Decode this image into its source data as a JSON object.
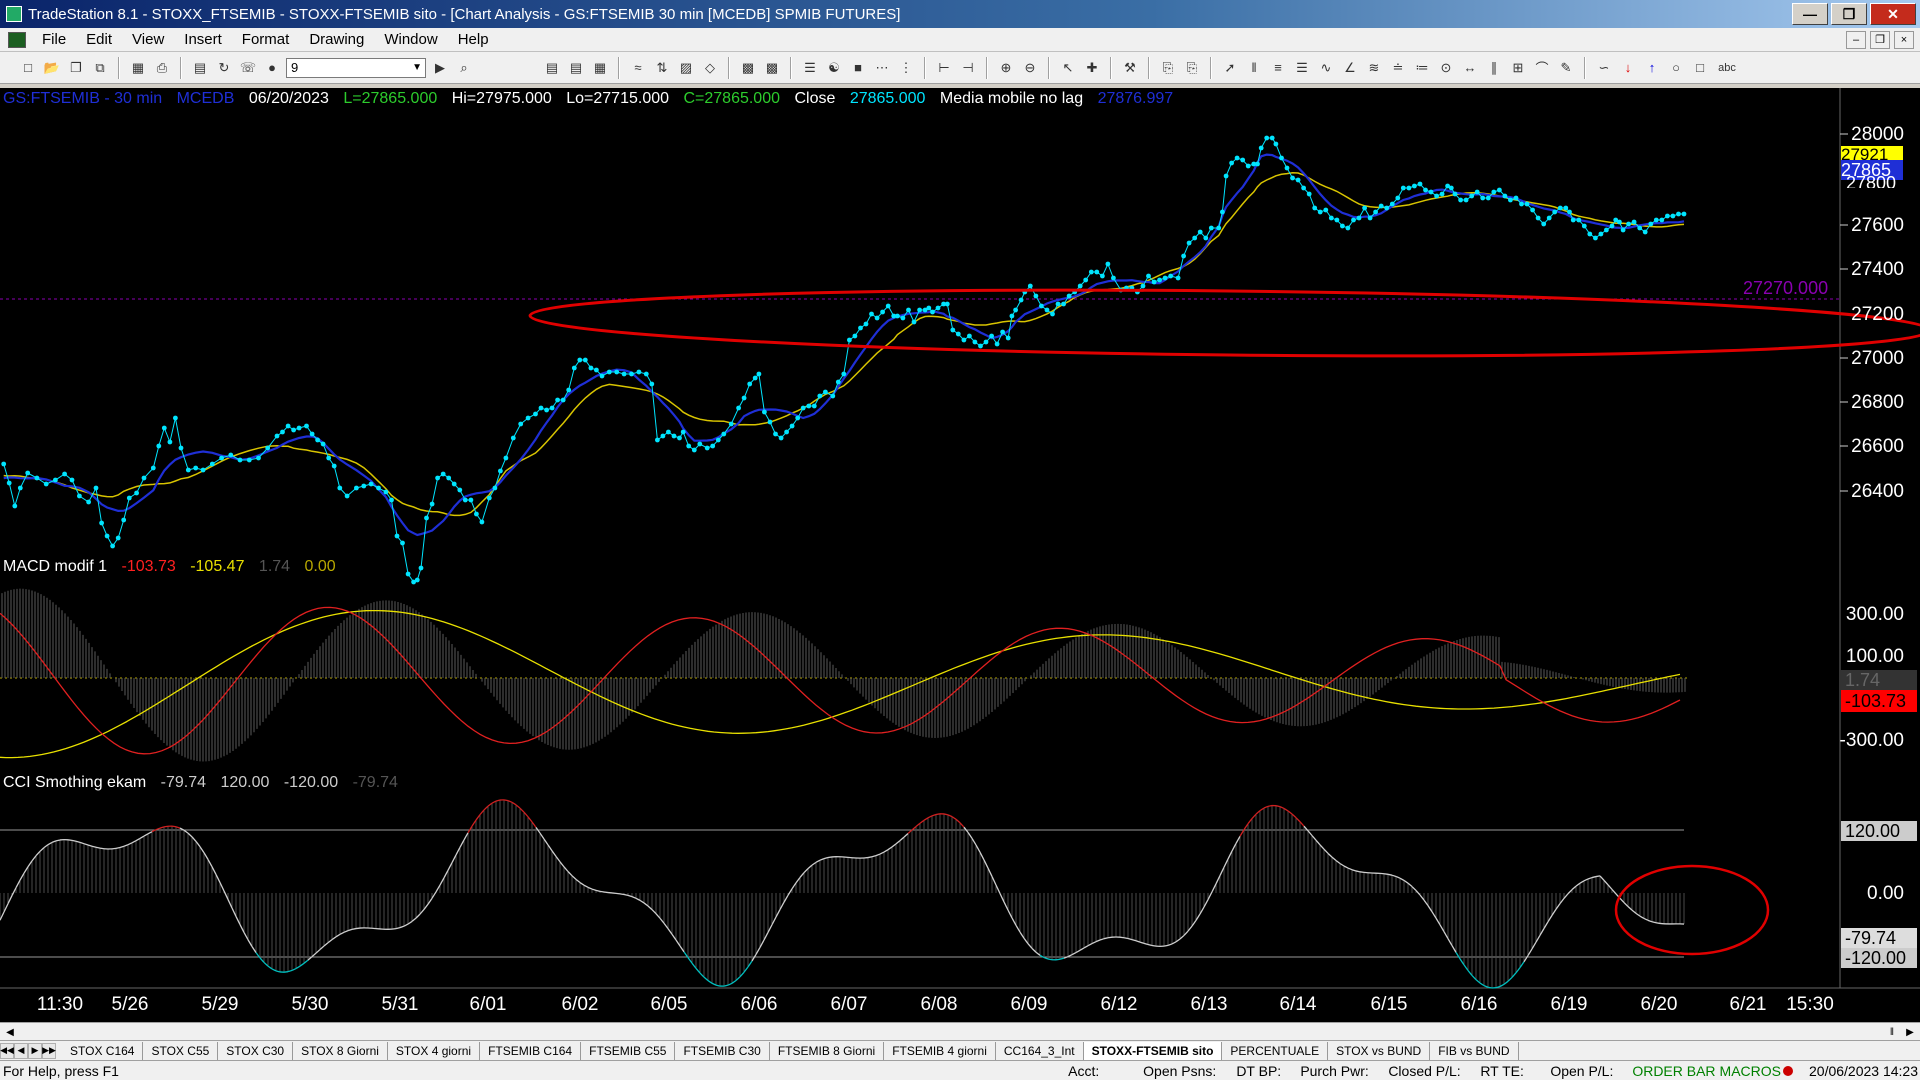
{
  "window": {
    "title": "TradeStation 8.1 - STOXX_FTSEMIB - STOXX-FTSEMIB sito - [Chart Analysis - GS:FTSEMIB  30 min  [MCEDB] SPMIB FUTURES]",
    "minimize": "—",
    "restore": "❐",
    "close": "✕"
  },
  "menu": {
    "items": [
      "File",
      "Edit",
      "View",
      "Insert",
      "Format",
      "Drawing",
      "Window",
      "Help"
    ],
    "mdi_min": "–",
    "mdi_restore": "❐",
    "mdi_close": "×"
  },
  "toolbar": {
    "interval_value": "9",
    "text_tool": "abc"
  },
  "price_pane": {
    "symbol": "GS:FTSEMIB - 30 min",
    "feed": "MCEDB",
    "date": "06/20/2023",
    "last": "L=27865.000",
    "high": "Hi=27975.000",
    "low": "Lo=27715.000",
    "close_eq": "C=27865.000",
    "close_label": "Close",
    "close_value": "27865.000",
    "ma_label": "Media mobile no lag",
    "ma_value": "27876.997",
    "hline_label": "27270.000",
    "axis": [
      "28000",
      "27600",
      "27400",
      "27200",
      "27000",
      "26800",
      "26600",
      "26400"
    ],
    "tag_yellow": "27921",
    "tag_blue": "27865",
    "tag_partial": "27800",
    "colors": {
      "price": "#00e5ff",
      "ma_blue": "#1f2fd6",
      "ma_yellow": "#d8c400",
      "hline": "#8a00b0",
      "annotation": "#e00000"
    }
  },
  "macd_pane": {
    "name": "MACD modif 1",
    "v1": "-103.73",
    "v2": "-105.47",
    "v3": "1.74",
    "v4": "0.00",
    "axis": [
      "300.00",
      "100.00",
      "-300.00"
    ],
    "tag_gray": "1.74",
    "tag_red": "-103.73"
  },
  "cci_pane": {
    "name": "CCI Smothing ekam",
    "v1": "-79.74",
    "v2": "120.00",
    "v3": "-120.00",
    "v4": "-79.74",
    "axis_mid": "0.00",
    "tag_upper": "120.00",
    "tag_value": "-79.74",
    "tag_lower": "-120.00"
  },
  "dates": [
    "11:30",
    "5/26",
    "5/29",
    "5/30",
    "5/31",
    "6/01",
    "6/02",
    "6/05",
    "6/06",
    "6/07",
    "6/08",
    "6/09",
    "6/12",
    "6/13",
    "6/14",
    "6/15",
    "6/16",
    "6/19",
    "6/20",
    "6/21",
    "15:30"
  ],
  "tabs": [
    "STOX C164",
    "STOX C55",
    "STOX  C30",
    "STOX  8 Giorni",
    "STOX 4 giorni",
    "FTSEMIB C164",
    "FTSEMIB C55",
    "FTSEMIB C30",
    "FTSEMIB  8 Giorni",
    "FTSEMIB  4 giorni",
    "CC164_3_Int",
    "STOXX-FTSEMIB sito",
    "PERCENTUALE",
    "STOX vs BUND",
    "FIB vs BUND"
  ],
  "active_tab": "STOXX-FTSEMIB sito",
  "status": {
    "help": "For Help, press F1",
    "acct": "Acct:",
    "open_psns": "Open Psns:",
    "dt_bp": "DT BP:",
    "purch_pwr": "Purch Pwr:",
    "closed_pl": "Closed P/L:",
    "rt_te": "RT TE:",
    "open_pl": "Open P/L:",
    "order_bar": "ORDER BAR",
    "macros": "MACROS",
    "datetime": "20/06/2023 14:23"
  }
}
